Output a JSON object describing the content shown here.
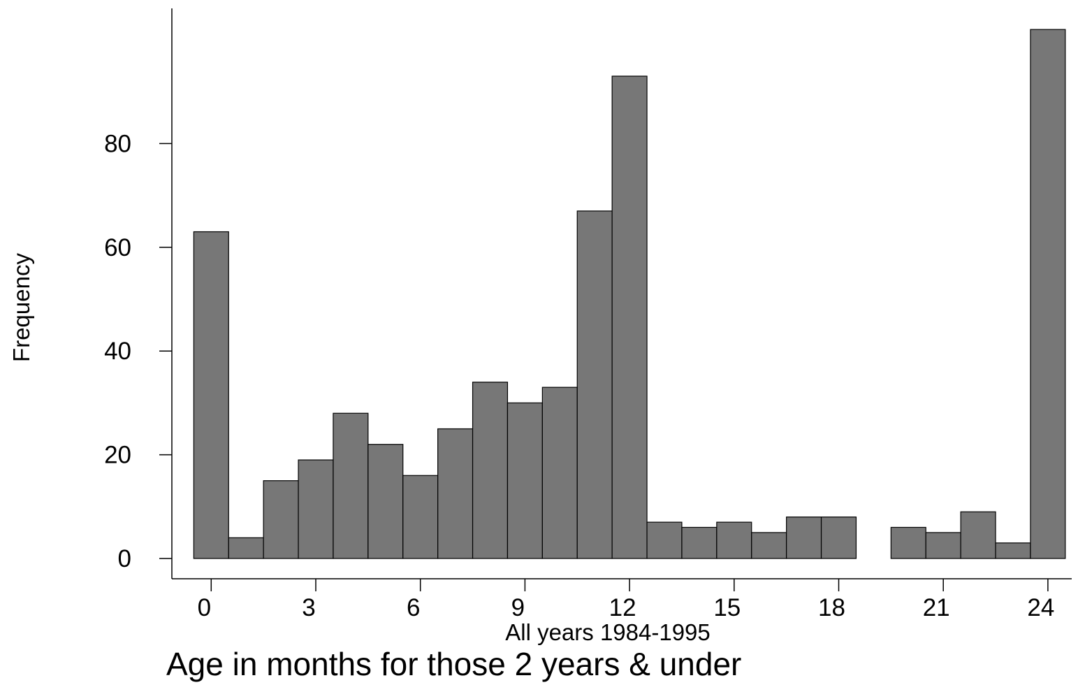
{
  "chart_data": {
    "type": "bar",
    "title": "Age in months for those 2 years & under",
    "xlabel": "All years 1984-1995",
    "ylabel": "Frequency",
    "x": [
      0,
      1,
      2,
      3,
      4,
      5,
      6,
      7,
      8,
      9,
      10,
      11,
      12,
      13,
      14,
      15,
      16,
      17,
      18,
      19,
      20,
      21,
      22,
      23,
      24
    ],
    "values": [
      63,
      4,
      15,
      19,
      28,
      22,
      16,
      25,
      34,
      30,
      33,
      67,
      93,
      7,
      6,
      7,
      5,
      8,
      8,
      0,
      6,
      5,
      9,
      3,
      102
    ],
    "xticks": [
      "0",
      "3",
      "6",
      "9",
      "12",
      "15",
      "18",
      "21",
      "24"
    ],
    "yticks": [
      "0",
      "20",
      "40",
      "60",
      "80"
    ],
    "xlim": [
      -1,
      25
    ],
    "ylim": [
      0,
      105
    ],
    "grid": false,
    "colors": {
      "bar_fill": "#777777",
      "bar_stroke": "#000000"
    }
  }
}
